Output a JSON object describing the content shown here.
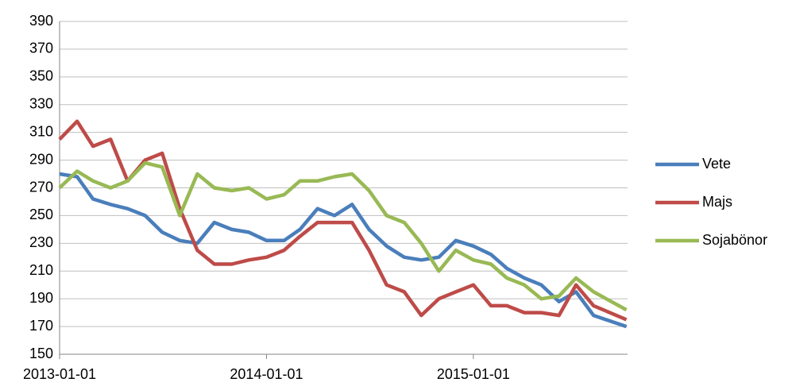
{
  "chart_data": {
    "type": "line",
    "x": [
      "2013-01-01",
      "2013-02-01",
      "2013-03-01",
      "2013-04-01",
      "2013-05-01",
      "2013-06-01",
      "2013-07-01",
      "2013-08-01",
      "2013-09-01",
      "2013-10-01",
      "2013-11-01",
      "2013-12-01",
      "2014-01-01",
      "2014-02-01",
      "2014-03-01",
      "2014-04-01",
      "2014-05-01",
      "2014-06-01",
      "2014-07-01",
      "2014-08-01",
      "2014-09-01",
      "2014-10-01",
      "2014-11-01",
      "2014-12-01",
      "2015-01-01",
      "2015-02-01",
      "2015-03-01",
      "2015-04-01",
      "2015-05-01",
      "2015-06-01",
      "2015-07-01",
      "2015-08-01",
      "2015-09-28"
    ],
    "series": [
      {
        "name": "Vete",
        "color": "#4a7ebb",
        "values": [
          280,
          278,
          262,
          258,
          255,
          250,
          238,
          232,
          230,
          245,
          240,
          238,
          232,
          232,
          240,
          255,
          250,
          258,
          240,
          228,
          220,
          218,
          220,
          232,
          228,
          222,
          212,
          205,
          200,
          188,
          195,
          178,
          170
        ]
      },
      {
        "name": "Majs",
        "color": "#be4b48",
        "values": [
          305,
          318,
          300,
          305,
          275,
          290,
          295,
          255,
          225,
          215,
          215,
          218,
          220,
          225,
          235,
          245,
          245,
          245,
          225,
          200,
          195,
          178,
          190,
          195,
          200,
          185,
          185,
          180,
          180,
          178,
          200,
          185,
          175
        ]
      },
      {
        "name": "Sojabönor",
        "color": "#98b954",
        "values": [
          270,
          282,
          275,
          270,
          275,
          288,
          285,
          250,
          280,
          270,
          268,
          270,
          262,
          265,
          275,
          275,
          278,
          280,
          268,
          250,
          245,
          230,
          210,
          225,
          218,
          215,
          205,
          200,
          190,
          192,
          205,
          195,
          182
        ]
      }
    ],
    "xlim": [
      "2013-01-01",
      "2015-09-30"
    ],
    "xticks": [
      "2013-01-01",
      "2014-01-01",
      "2015-01-01"
    ],
    "ylim": [
      150,
      390
    ],
    "yticks": [
      150,
      170,
      190,
      210,
      230,
      250,
      270,
      290,
      310,
      330,
      350,
      370,
      390
    ],
    "grid": true,
    "legend": "right"
  }
}
